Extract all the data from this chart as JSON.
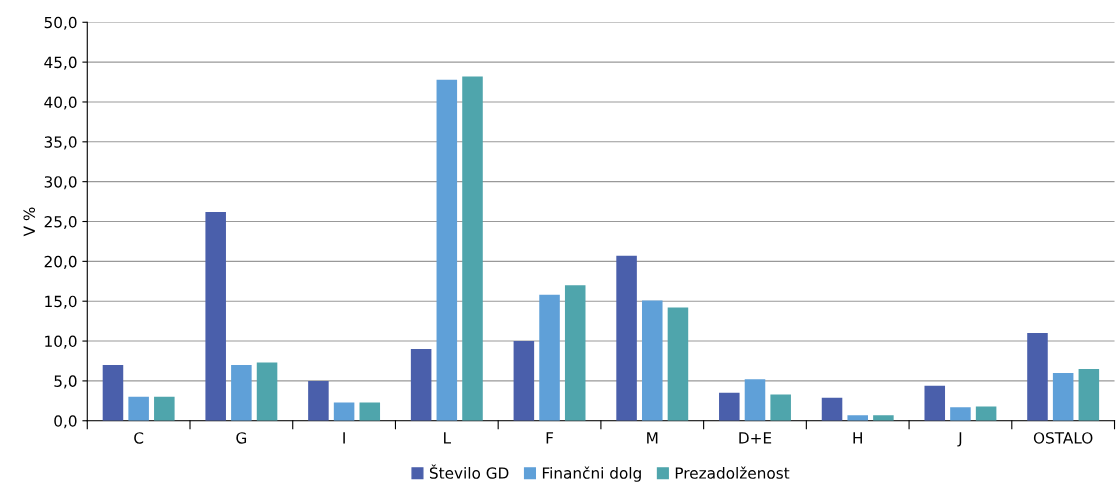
{
  "chart_data": {
    "type": "bar",
    "ylabel": "V %",
    "categories": [
      "C",
      "G",
      "I",
      "L",
      "F",
      "M",
      "D+E",
      "H",
      "J",
      "OSTALO"
    ],
    "series": [
      {
        "name": "Število GD",
        "color": "#4a5fab",
        "values": [
          7.0,
          26.2,
          5.0,
          9.0,
          10.0,
          20.7,
          3.5,
          2.9,
          4.4,
          11.0
        ]
      },
      {
        "name": "Finančni dolg",
        "color": "#5fa0d8",
        "values": [
          3.0,
          7.0,
          2.3,
          42.8,
          15.8,
          15.1,
          5.2,
          0.7,
          1.7,
          6.0
        ]
      },
      {
        "name": "Prezadolženost",
        "color": "#4fa5ac",
        "values": [
          3.0,
          7.3,
          2.3,
          43.2,
          17.0,
          14.2,
          3.3,
          0.7,
          1.8,
          6.5
        ]
      }
    ],
    "ylim": [
      0,
      50
    ],
    "yticks": [
      {
        "value": 0,
        "label": "0,0"
      },
      {
        "value": 5,
        "label": "5,0"
      },
      {
        "value": 10,
        "label": "10,0"
      },
      {
        "value": 15,
        "label": "15,0"
      },
      {
        "value": 20,
        "label": "20,0"
      },
      {
        "value": 25,
        "label": "25,0"
      },
      {
        "value": 30,
        "label": "30,0"
      },
      {
        "value": 35,
        "label": "35,0"
      },
      {
        "value": 40,
        "label": "40,0"
      },
      {
        "value": 45,
        "label": "45,0"
      },
      {
        "value": 50,
        "label": "50,0"
      }
    ],
    "grid": "y",
    "legend": "bottom"
  }
}
